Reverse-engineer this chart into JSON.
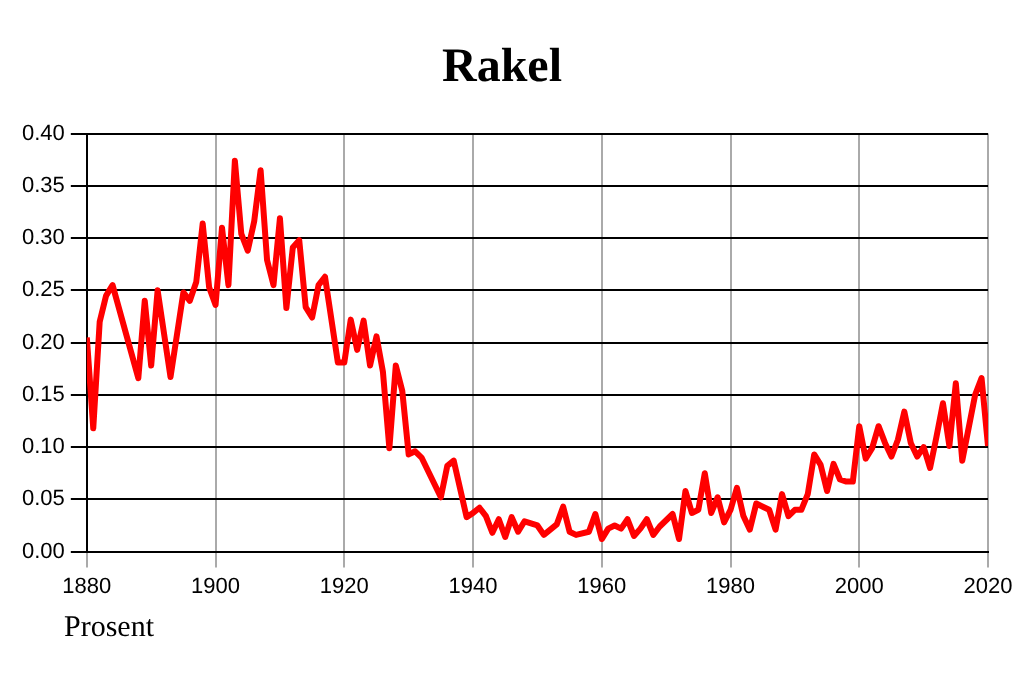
{
  "chart_data": {
    "type": "line",
    "title": "Rakel",
    "annotations": [
      "Prosent"
    ],
    "color": "#ff0000",
    "x": [
      1880,
      1881,
      1882,
      1883,
      1884,
      1888,
      1889,
      1890,
      1891,
      1893,
      1895,
      1896,
      1897,
      1898,
      1899,
      1900,
      1901,
      1902,
      1903,
      1904,
      1905,
      1906,
      1907,
      1908,
      1909,
      1910,
      1911,
      1912,
      1913,
      1914,
      1915,
      1916,
      1917,
      1919,
      1920,
      1921,
      1922,
      1923,
      1924,
      1925,
      1926,
      1927,
      1928,
      1929,
      1930,
      1931,
      1932,
      1935,
      1936,
      1937,
      1939,
      1940,
      1941,
      1942,
      1943,
      1944,
      1945,
      1946,
      1947,
      1948,
      1950,
      1951,
      1953,
      1954,
      1955,
      1956,
      1958,
      1959,
      1960,
      1961,
      1962,
      1963,
      1964,
      1965,
      1966,
      1967,
      1968,
      1969,
      1971,
      1972,
      1973,
      1974,
      1975,
      1976,
      1977,
      1978,
      1979,
      1980,
      1981,
      1982,
      1983,
      1984,
      1986,
      1987,
      1988,
      1989,
      1990,
      1991,
      1992,
      1993,
      1994,
      1995,
      1996,
      1997,
      1998,
      1999,
      2000,
      2001,
      2002,
      2003,
      2004,
      2005,
      2006,
      2007,
      2008,
      2009,
      2010,
      2011,
      2012,
      2013,
      2014,
      2015,
      2016,
      2018,
      2019,
      2020
    ],
    "values": [
      0.205,
      0.118,
      0.22,
      0.245,
      0.255,
      0.166,
      0.24,
      0.178,
      0.25,
      0.167,
      0.248,
      0.24,
      0.258,
      0.314,
      0.253,
      0.236,
      0.31,
      0.255,
      0.374,
      0.304,
      0.288,
      0.316,
      0.365,
      0.279,
      0.255,
      0.319,
      0.233,
      0.291,
      0.298,
      0.234,
      0.224,
      0.255,
      0.263,
      0.181,
      0.181,
      0.222,
      0.193,
      0.221,
      0.178,
      0.206,
      0.172,
      0.099,
      0.178,
      0.154,
      0.093,
      0.096,
      0.09,
      0.052,
      0.082,
      0.087,
      0.033,
      0.037,
      0.042,
      0.034,
      0.018,
      0.031,
      0.014,
      0.033,
      0.019,
      0.029,
      0.025,
      0.016,
      0.026,
      0.043,
      0.019,
      0.016,
      0.019,
      0.036,
      0.012,
      0.022,
      0.025,
      0.022,
      0.031,
      0.015,
      0.022,
      0.031,
      0.016,
      0.024,
      0.036,
      0.012,
      0.058,
      0.037,
      0.04,
      0.075,
      0.037,
      0.052,
      0.028,
      0.04,
      0.061,
      0.034,
      0.021,
      0.046,
      0.04,
      0.021,
      0.055,
      0.034,
      0.04,
      0.04,
      0.055,
      0.093,
      0.083,
      0.058,
      0.084,
      0.069,
      0.067,
      0.067,
      0.12,
      0.089,
      0.099,
      0.12,
      0.104,
      0.091,
      0.107,
      0.134,
      0.104,
      0.091,
      0.1,
      0.08,
      0.11,
      0.142,
      0.101,
      0.161,
      0.087,
      0.15,
      0.166,
      0.101
    ],
    "xlim": [
      1880,
      2020
    ],
    "xticks": [
      1880,
      1900,
      1920,
      1940,
      1960,
      1980,
      2000,
      2020
    ],
    "ylim": [
      0,
      0.4
    ],
    "yticks": [
      {
        "value": 0,
        "label": "0.00"
      },
      0.05,
      {
        "value": 0.1,
        "label": "0.10"
      },
      0.15,
      {
        "value": 0.2,
        "label": "0.20"
      },
      0.25,
      {
        "value": 0.3,
        "label": "0.30"
      },
      0.35,
      {
        "value": 0.4,
        "label": "0.40"
      }
    ],
    "grid": true,
    "marker": "none",
    "line_style": "solid"
  }
}
